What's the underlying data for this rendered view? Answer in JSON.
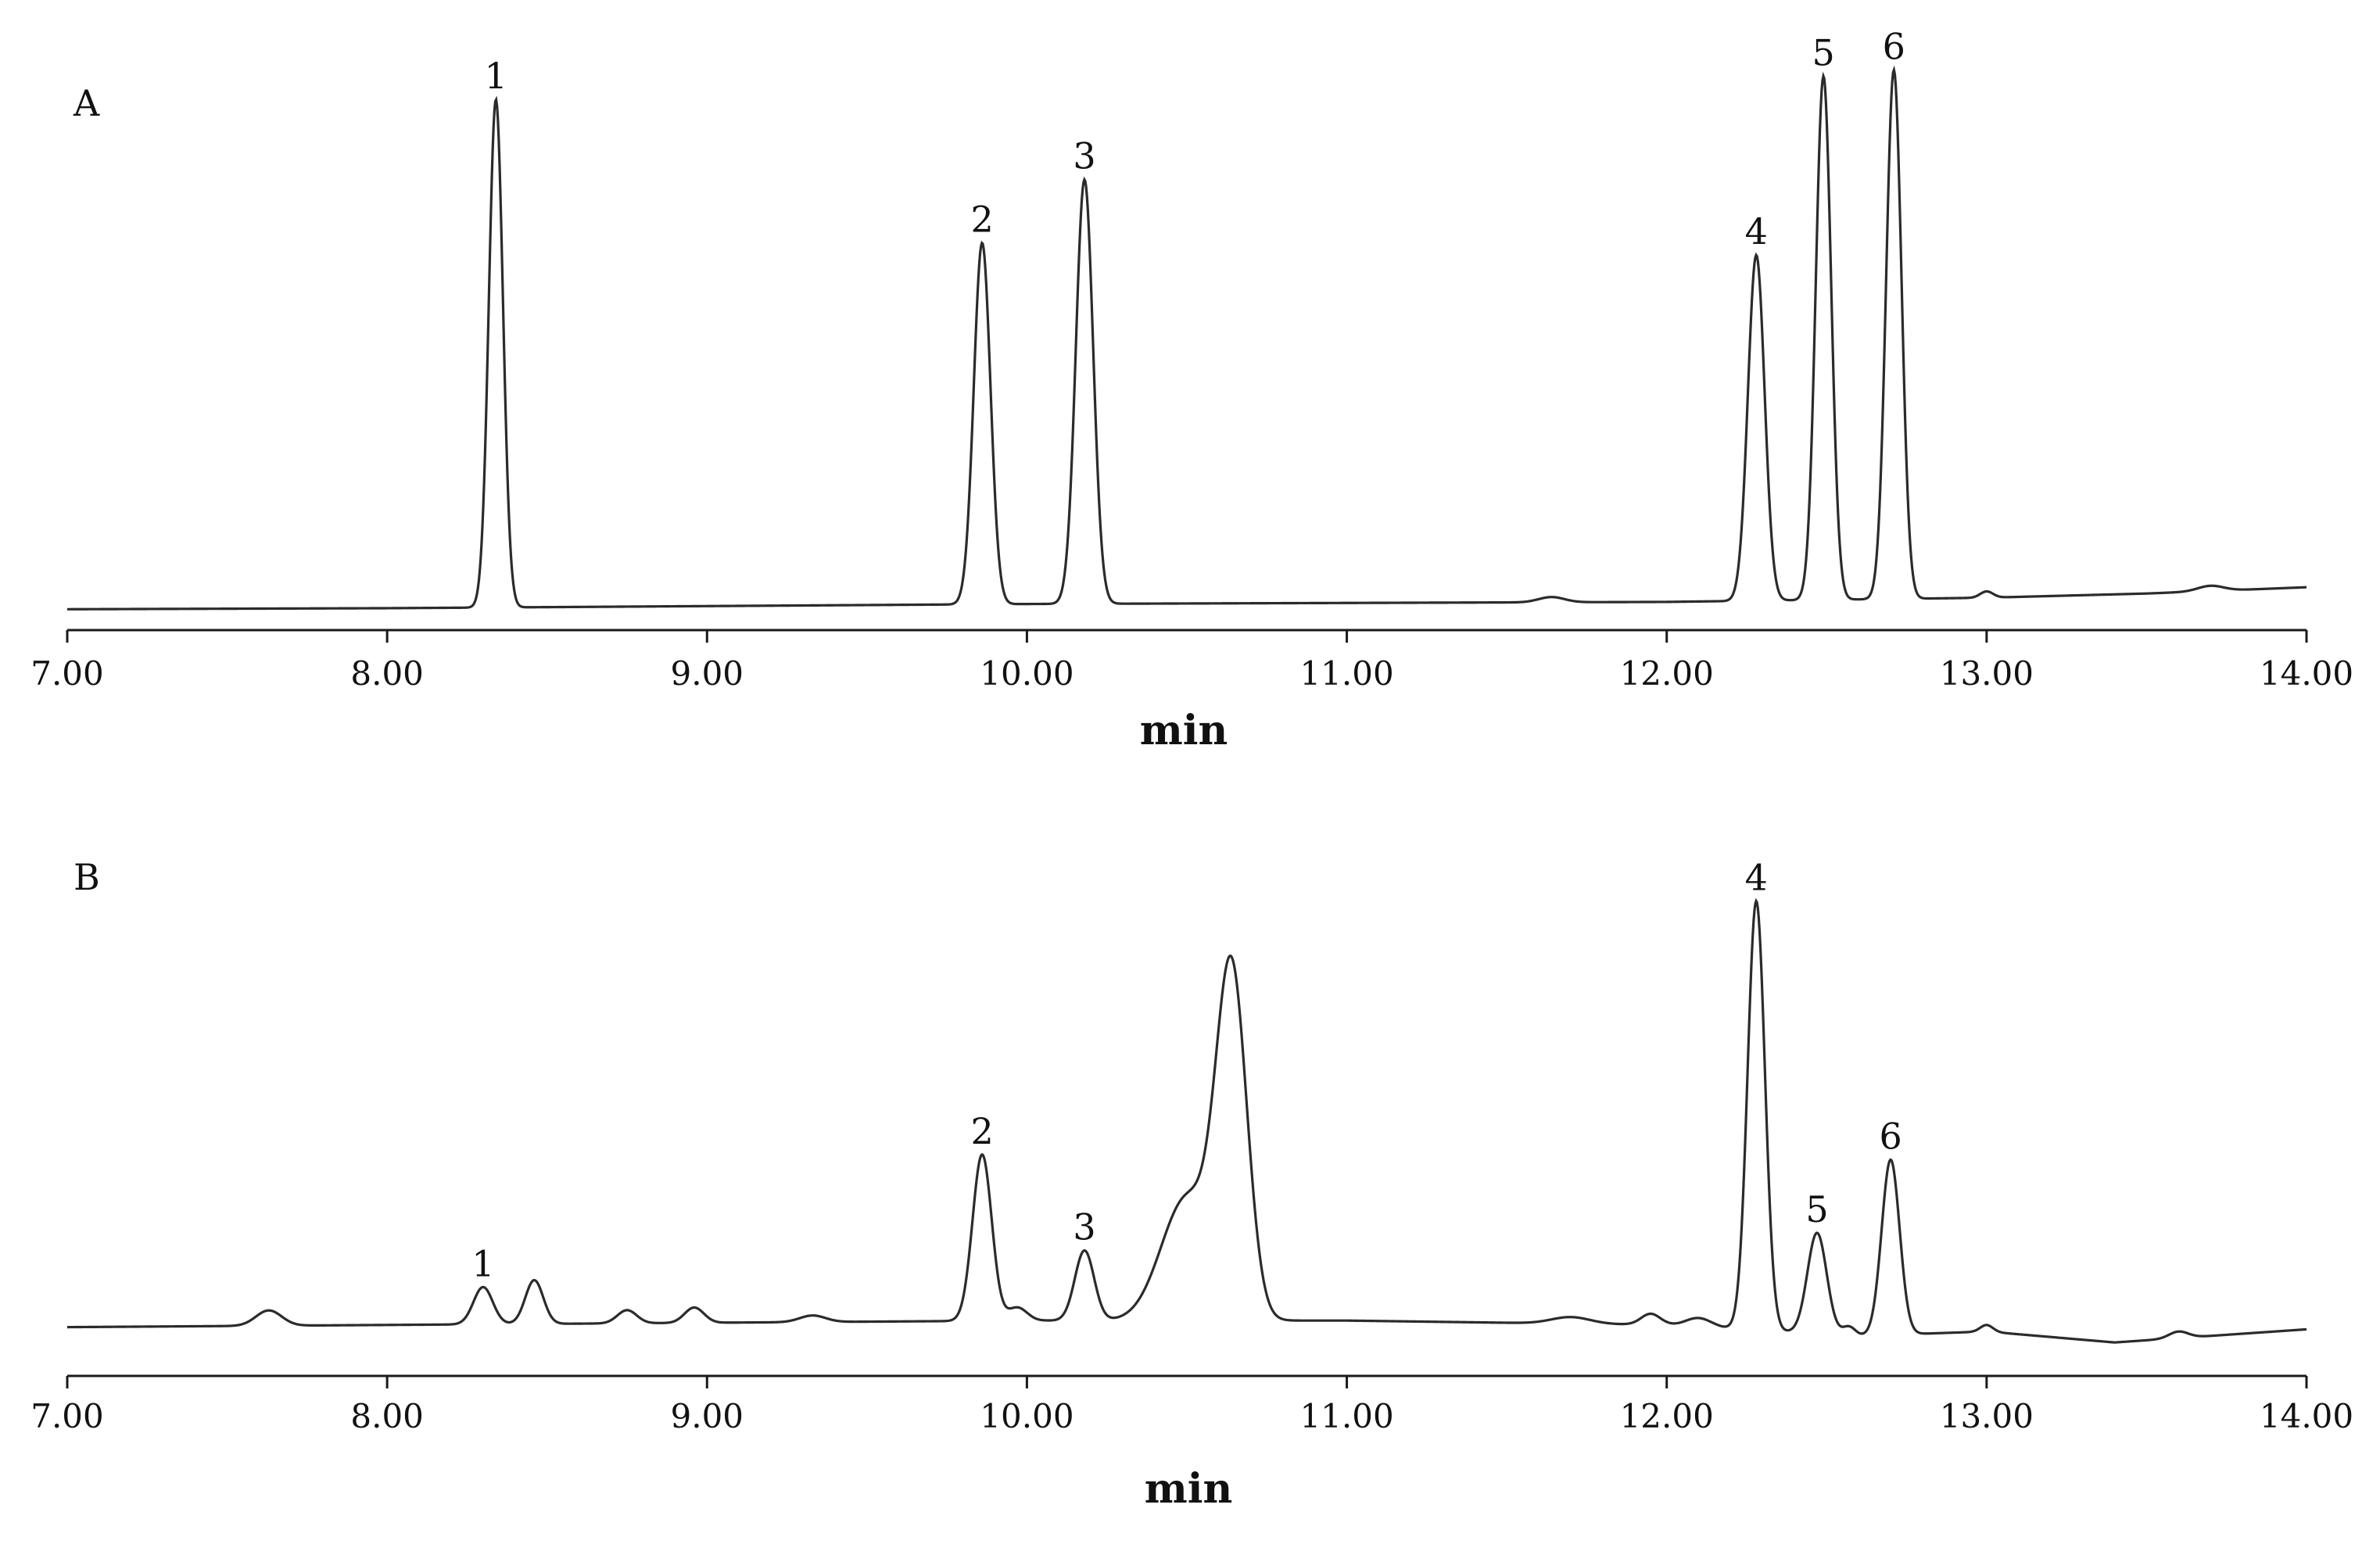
{
  "chart_data": [
    {
      "type": "line",
      "panel_label": "A",
      "xlabel": "min",
      "ylabel": "",
      "xlim": [
        7.0,
        14.0
      ],
      "xticks": [
        "7.00",
        "8.00",
        "9.00",
        "10.00",
        "11.00",
        "12.00",
        "13.00",
        "14.00"
      ],
      "grid": false,
      "baseline": [
        [
          7.0,
          0.01
        ],
        [
          8.0,
          0.012
        ],
        [
          9.0,
          0.016
        ],
        [
          10.0,
          0.02
        ],
        [
          11.0,
          0.022
        ],
        [
          12.0,
          0.024
        ],
        [
          12.5,
          0.028
        ],
        [
          13.0,
          0.032
        ],
        [
          13.5,
          0.04
        ],
        [
          14.0,
          0.052
        ]
      ],
      "peaks": [
        {
          "label": "1",
          "rt": 8.34,
          "height": 0.97,
          "width": 0.022
        },
        {
          "label": "2",
          "rt": 9.86,
          "height": 0.69,
          "width": 0.026
        },
        {
          "label": "3",
          "rt": 10.18,
          "height": 0.81,
          "width": 0.027
        },
        {
          "label": "4",
          "rt": 12.28,
          "height": 0.66,
          "width": 0.026
        },
        {
          "label": "5",
          "rt": 12.49,
          "height": 1.0,
          "width": 0.024
        },
        {
          "label": "6",
          "rt": 12.71,
          "height": 1.01,
          "width": 0.024
        }
      ],
      "minor_peaks": [
        {
          "rt": 11.64,
          "height": 0.01,
          "width": 0.04
        },
        {
          "rt": 13.0,
          "height": 0.012,
          "width": 0.02
        },
        {
          "rt": 13.7,
          "height": 0.01,
          "width": 0.04
        }
      ]
    },
    {
      "type": "line",
      "panel_label": "B",
      "xlabel": "min",
      "ylabel": "",
      "xlim": [
        7.0,
        14.0
      ],
      "xticks": [
        "7.00",
        "8.00",
        "9.00",
        "10.00",
        "11.00",
        "12.00",
        "13.00",
        "14.00"
      ],
      "grid": false,
      "baseline": [
        [
          7.0,
          0.04
        ],
        [
          8.0,
          0.045
        ],
        [
          9.0,
          0.05
        ],
        [
          10.0,
          0.055
        ],
        [
          11.0,
          0.055
        ],
        [
          12.0,
          0.045
        ],
        [
          12.6,
          0.02
        ],
        [
          13.0,
          0.03
        ],
        [
          13.4,
          0.005
        ],
        [
          14.0,
          0.035
        ]
      ],
      "peaks": [
        {
          "label": "1",
          "rt": 8.3,
          "height": 0.085,
          "width": 0.03
        },
        {
          "label": "2",
          "rt": 9.86,
          "height": 0.38,
          "width": 0.03
        },
        {
          "label": "3",
          "rt": 10.18,
          "height": 0.16,
          "width": 0.03
        },
        {
          "label": "4",
          "rt": 12.28,
          "height": 0.98,
          "width": 0.027
        },
        {
          "label": "5",
          "rt": 12.47,
          "height": 0.23,
          "width": 0.03
        },
        {
          "label": "6",
          "rt": 12.7,
          "height": 0.4,
          "width": 0.028
        }
      ],
      "minor_peaks": [
        {
          "rt": 7.63,
          "height": 0.035,
          "width": 0.04
        },
        {
          "rt": 8.46,
          "height": 0.1,
          "width": 0.028
        },
        {
          "rt": 8.75,
          "height": 0.03,
          "width": 0.03
        },
        {
          "rt": 8.96,
          "height": 0.035,
          "width": 0.03
        },
        {
          "rt": 9.33,
          "height": 0.015,
          "width": 0.04
        },
        {
          "rt": 9.97,
          "height": 0.03,
          "width": 0.03
        },
        {
          "rt": 10.5,
          "height": 0.28,
          "width": 0.08
        },
        {
          "rt": 10.64,
          "height": 0.77,
          "width": 0.048
        },
        {
          "rt": 11.7,
          "height": 0.015,
          "width": 0.06
        },
        {
          "rt": 11.95,
          "height": 0.025,
          "width": 0.03
        },
        {
          "rt": 12.1,
          "height": 0.02,
          "width": 0.04
        },
        {
          "rt": 12.57,
          "height": 0.02,
          "width": 0.02
        },
        {
          "rt": 13.0,
          "height": 0.015,
          "width": 0.02
        },
        {
          "rt": 13.6,
          "height": 0.015,
          "width": 0.03
        }
      ]
    }
  ]
}
